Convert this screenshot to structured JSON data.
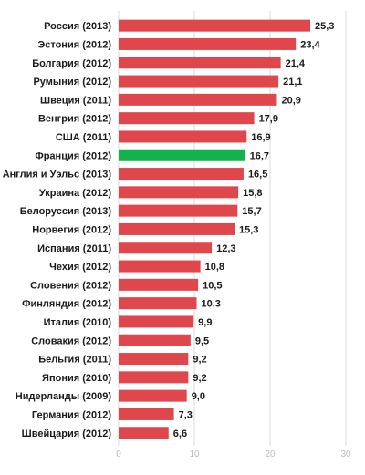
{
  "chart_data": {
    "type": "bar",
    "orientation": "horizontal",
    "categories": [
      "Россия (2013)",
      "Эстония (2012)",
      "Болгария (2012)",
      "Румыния (2012)",
      "Швеция (2011)",
      "Венгрия (2012)",
      "США (2011)",
      "Франция (2012)",
      "Англия и Уэльс (2013)",
      "Украина (2012)",
      "Белоруссия (2013)",
      "Норвегия (2012)",
      "Испания (2011)",
      "Чехия (2012)",
      "Словения (2012)",
      "Финляндия (2012)",
      "Италия (2010)",
      "Словакия (2012)",
      "Бельгия (2011)",
      "Япония (2010)",
      "Нидерланды (2009)",
      "Германия (2012)",
      "Швейцария (2012)"
    ],
    "values": [
      25.3,
      23.4,
      21.4,
      21.1,
      20.9,
      17.9,
      16.9,
      16.7,
      16.5,
      15.8,
      15.7,
      15.3,
      12.3,
      10.8,
      10.5,
      10.3,
      9.9,
      9.5,
      9.2,
      9.2,
      9.0,
      7.3,
      6.6
    ],
    "value_labels": [
      "25,3",
      "23,4",
      "21,4",
      "21,1",
      "20,9",
      "17,9",
      "16,9",
      "16,7",
      "16,5",
      "15,8",
      "15,7",
      "15,3",
      "12,3",
      "10,8",
      "10,5",
      "10,3",
      "9,9",
      "9,5",
      "9,2",
      "9,2",
      "9,0",
      "7,3",
      "6,6"
    ],
    "highlight": "Франция (2012)",
    "xlim": [
      0,
      30
    ],
    "xticks": [
      "0",
      "10",
      "20",
      "30"
    ],
    "grid": true,
    "legend": "none",
    "title": "",
    "xlabel": "",
    "ylabel": ""
  },
  "colors": {
    "bar": "#e0474c",
    "highlight": "#12b24c",
    "grid": "#d9d9d9",
    "tick_text": "#bdbdbd"
  }
}
